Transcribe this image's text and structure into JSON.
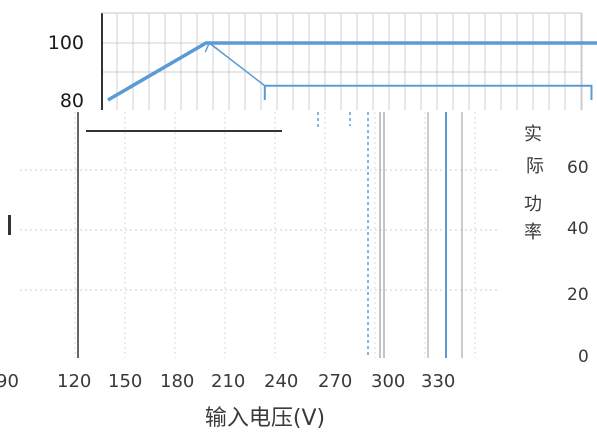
{
  "chart_data": {
    "type": "line",
    "title": "",
    "xlabel": "输入电压(V)",
    "ylabel": "",
    "x_ticks": [
      "90",
      "120",
      "150",
      "180",
      "210",
      "240",
      "270",
      "300",
      "330"
    ],
    "y_ticks_left": [
      "100",
      "80"
    ],
    "y_ticks_right": [
      "60",
      "40",
      "20",
      "0"
    ],
    "right_axis_label_fragments": [
      "实",
      "际",
      "功",
      "率"
    ],
    "xlim": [
      90,
      345
    ],
    "grid": true,
    "series": [
      {
        "color": "#5b9bd5",
        "x": [
          120,
          150,
          305,
          305
        ],
        "y": [
          80,
          100,
          100,
          80
        ]
      }
    ],
    "annotation": {
      "x": [
        168,
        168,
        268,
        268
      ],
      "y": [
        80,
        85,
        85,
        80
      ],
      "arrow_from": [
        168,
        85
      ],
      "arrow_to": [
        151,
        100
      ]
    }
  }
}
